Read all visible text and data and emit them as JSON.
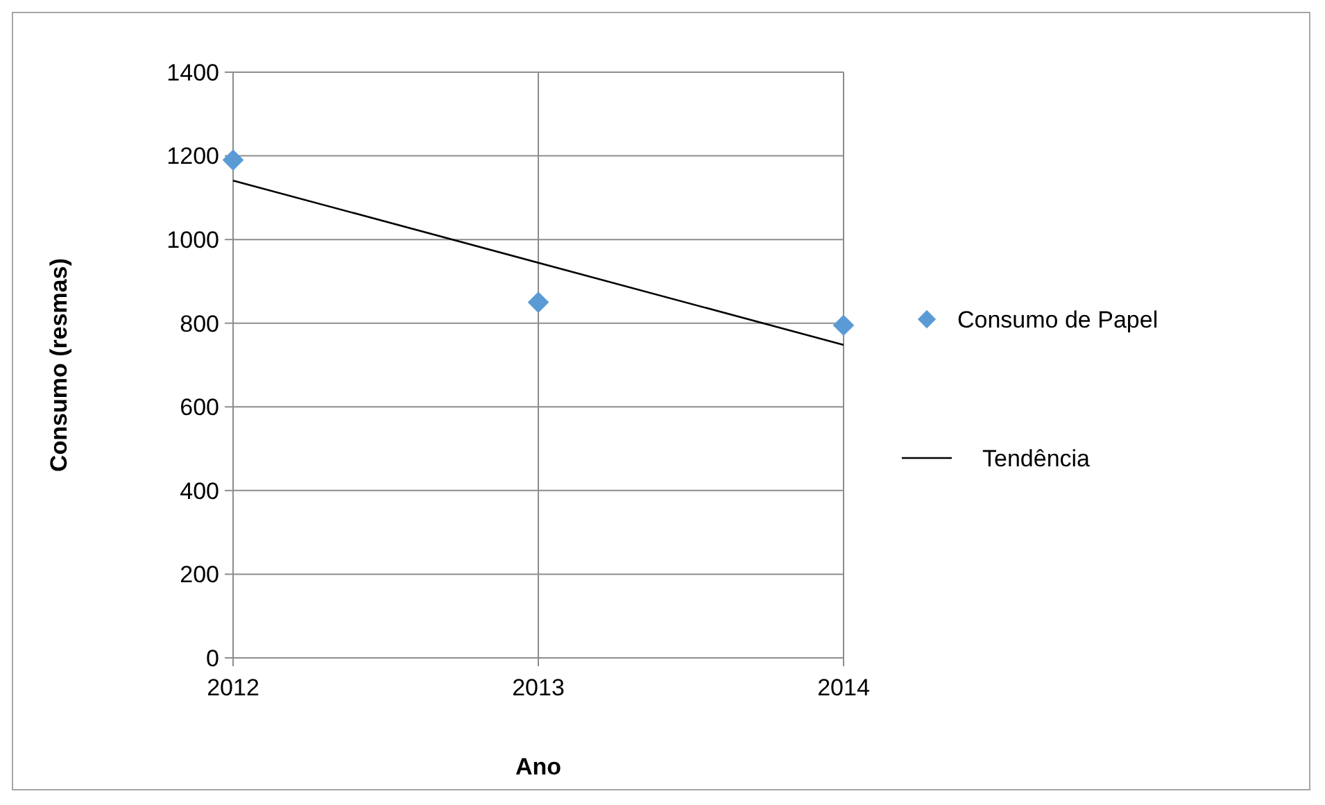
{
  "chart_data": {
    "type": "scatter",
    "xlabel": "Ano",
    "ylabel": "Consumo (resmas)",
    "x": [
      2012,
      2013,
      2014
    ],
    "xlim": [
      2012,
      2014
    ],
    "xticks": [
      2012,
      2013,
      2014
    ],
    "ylim": [
      0,
      1400
    ],
    "yticks": [
      0,
      200,
      400,
      600,
      800,
      1000,
      1200,
      1400
    ],
    "grid": true,
    "legend": "right",
    "marker": "diamond",
    "series": [
      {
        "name": "Consumo de Papel",
        "color": "#5b9bd5",
        "values": [
          1190,
          850,
          795
        ]
      },
      {
        "name": "Tendência",
        "type": "line",
        "color": "#000000",
        "x": [
          2012,
          2014
        ],
        "values": [
          1141,
          748
        ],
        "marker": "none",
        "line_style": "solid"
      }
    ]
  }
}
